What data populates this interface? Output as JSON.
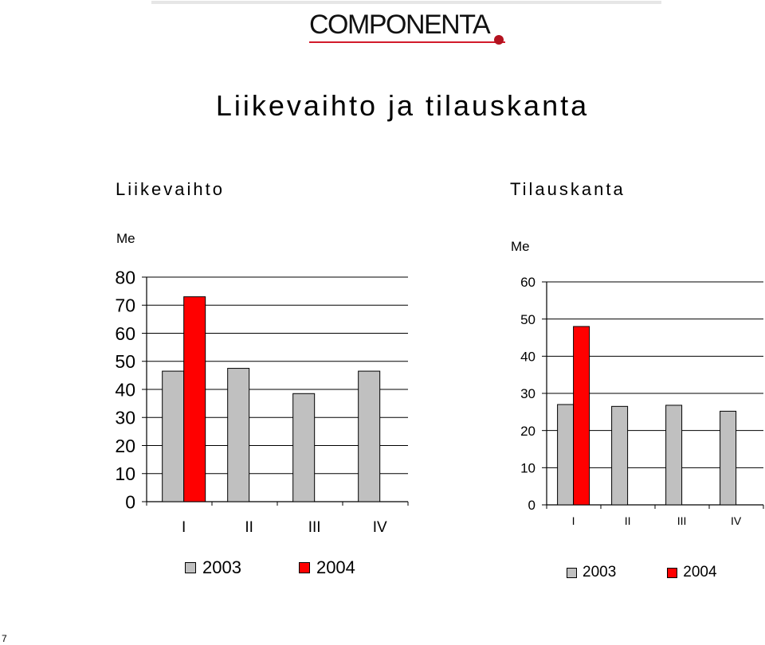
{
  "logo_text": "COMPONENTA",
  "title": "Liikevaihto ja tilauskanta",
  "page_number": "7",
  "colors": {
    "series_2003": "#c0c0c0",
    "series_2004": "#ff0000",
    "logo_accent": "#d21a2a"
  },
  "chart_data": [
    {
      "type": "bar",
      "title": "Liikevaihto",
      "ylabel": "Me",
      "categories": [
        "I",
        "II",
        "III",
        "IV"
      ],
      "series": [
        {
          "name": "2003",
          "values": [
            46.5,
            47.5,
            38.5,
            46.5
          ]
        },
        {
          "name": "2004",
          "values": [
            73,
            null,
            null,
            null
          ]
        }
      ],
      "ylim": [
        0,
        80
      ],
      "yticks": [
        0,
        10,
        20,
        30,
        40,
        50,
        60,
        70,
        80
      ],
      "grid": true,
      "legend": "bottom"
    },
    {
      "type": "bar",
      "title": "Tilauskanta",
      "ylabel": "Me",
      "categories": [
        "I",
        "II",
        "III",
        "IV"
      ],
      "series": [
        {
          "name": "2003",
          "values": [
            27,
            26.5,
            26.8,
            25.2
          ]
        },
        {
          "name": "2004",
          "values": [
            48,
            null,
            null,
            null
          ]
        }
      ],
      "ylim": [
        0,
        60
      ],
      "yticks": [
        0,
        10,
        20,
        30,
        40,
        50,
        60
      ],
      "grid": true,
      "legend": "bottom"
    }
  ]
}
